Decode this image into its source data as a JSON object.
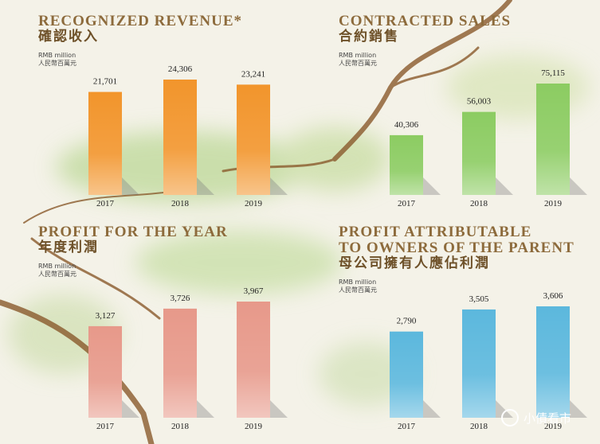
{
  "chart_data": [
    {
      "type": "bar",
      "title": [
        "RECOGNIZED REVENUE*"
      ],
      "subtitle": "確認收入",
      "unit": [
        "RMB million",
        "人民幣百萬元"
      ],
      "categories": [
        "2017",
        "2018",
        "2019"
      ],
      "values": [
        21701,
        24306,
        23241
      ],
      "value_labels": [
        "21,701",
        "24,306",
        "23,241"
      ],
      "color": "#f2952c"
    },
    {
      "type": "bar",
      "title": [
        "CONTRACTED SALES"
      ],
      "subtitle": "合約銷售",
      "unit": [
        "RMB million",
        "人民幣百萬元"
      ],
      "categories": [
        "2017",
        "2018",
        "2019"
      ],
      "values": [
        40306,
        56003,
        75115
      ],
      "value_labels": [
        "40,306",
        "56,003",
        "75,115"
      ],
      "color": "#8ccc62"
    },
    {
      "type": "bar",
      "title": [
        "PROFIT FOR THE YEAR"
      ],
      "subtitle": "年度利潤",
      "unit": [
        "RMB million",
        "人民幣百萬元"
      ],
      "categories": [
        "2017",
        "2018",
        "2019"
      ],
      "values": [
        3127,
        3726,
        3967
      ],
      "value_labels": [
        "3,127",
        "3,726",
        "3,967"
      ],
      "color": "#e7998a"
    },
    {
      "type": "bar",
      "title": [
        "PROFIT ATTRIBUTABLE",
        "TO OWNERS OF THE PARENT"
      ],
      "subtitle": "母公司擁有人應佔利潤",
      "unit": [
        "RMB million",
        "人民幣百萬元"
      ],
      "categories": [
        "2017",
        "2018",
        "2019"
      ],
      "values": [
        2790,
        3505,
        3606
      ],
      "value_labels": [
        "2,790",
        "3,505",
        "3,606"
      ],
      "color": "#5cb8dd"
    }
  ],
  "watermark": "小債看市"
}
